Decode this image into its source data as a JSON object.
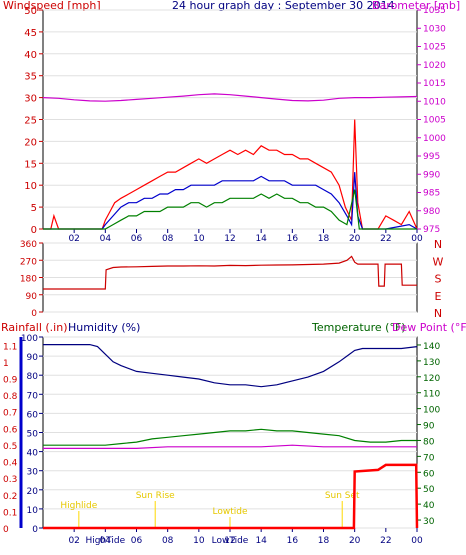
{
  "chart_data": [
    {
      "type": "line",
      "title": "24 hour graph day : September 30 2014",
      "ylabel_left": "Windspeed [mph]",
      "ylabel_right": "Barometer [mb]",
      "ylim_left": [
        0,
        50
      ],
      "yticks_left": [
        0,
        5,
        10,
        15,
        20,
        25,
        30,
        35,
        40,
        45,
        50
      ],
      "ylim_right": [
        975,
        1035
      ],
      "yticks_right": [
        975,
        980,
        985,
        990,
        995,
        1000,
        1005,
        1010,
        1015,
        1020,
        1025,
        1030,
        1035
      ],
      "xlim": [
        0,
        24
      ],
      "xtick_labels": [
        "02",
        "04",
        "06",
        "08",
        "10",
        "12",
        "14",
        "16",
        "18",
        "20",
        "22",
        "00"
      ],
      "colors": {
        "gust": "#ff0000",
        "wind_avg": "#0000cc",
        "wind_min": "#008000",
        "barometer": "#cc00cc",
        "axis_left": "#cc0000",
        "axis_right": "#cc00cc",
        "title": "#000080"
      },
      "series": [
        {
          "key": "gust",
          "color": "#ff0000",
          "x": [
            0.0,
            0.5,
            0.7,
            1.0,
            1.5,
            2.0,
            2.5,
            3.0,
            3.5,
            3.8,
            4.0,
            4.3,
            4.6,
            5.0,
            5.5,
            6.0,
            6.5,
            7.0,
            7.5,
            8.0,
            8.5,
            9.0,
            9.5,
            10.0,
            10.5,
            11.0,
            11.5,
            12.0,
            12.5,
            13.0,
            13.5,
            14.0,
            14.5,
            15.0,
            15.5,
            16.0,
            16.5,
            17.0,
            17.5,
            18.0,
            18.5,
            19.0,
            19.4,
            19.8,
            20.0,
            20.2,
            20.5,
            21.0,
            21.5,
            22.0,
            22.5,
            23.0,
            23.5,
            24.0
          ],
          "y": [
            0,
            0,
            3,
            0,
            0,
            0,
            0,
            0,
            0,
            0,
            2,
            4,
            6,
            7,
            8,
            9,
            10,
            11,
            12,
            13,
            13,
            14,
            15,
            16,
            15,
            16,
            17,
            18,
            17,
            18,
            17,
            19,
            18,
            18,
            17,
            17,
            16,
            16,
            15,
            14,
            13,
            10,
            5,
            2,
            25,
            6,
            0,
            0,
            0,
            3,
            2,
            1,
            4,
            0
          ]
        },
        {
          "key": "wind_avg",
          "color": "#0000cc",
          "x": [
            0.0,
            3.8,
            4.0,
            4.5,
            5.0,
            5.5,
            6.0,
            6.5,
            7.0,
            7.5,
            8.0,
            8.5,
            9.0,
            9.5,
            10.0,
            10.5,
            11.0,
            11.5,
            12.0,
            12.5,
            13.0,
            13.5,
            14.0,
            14.5,
            15.0,
            15.5,
            16.0,
            16.5,
            17.0,
            17.5,
            18.0,
            18.5,
            19.0,
            19.5,
            19.8,
            20.0,
            20.2,
            20.5,
            22.0,
            23.5,
            24.0
          ],
          "y": [
            0,
            0,
            1,
            3,
            5,
            6,
            6,
            7,
            7,
            8,
            8,
            9,
            9,
            10,
            10,
            10,
            10,
            11,
            11,
            11,
            11,
            11,
            12,
            11,
            11,
            11,
            10,
            10,
            10,
            10,
            9,
            8,
            6,
            3,
            1,
            13,
            3,
            0,
            0,
            1,
            0
          ]
        },
        {
          "key": "wind_min",
          "color": "#008000",
          "x": [
            0.0,
            4.0,
            4.5,
            5.0,
            5.5,
            6.0,
            6.5,
            7.0,
            7.5,
            8.0,
            8.5,
            9.0,
            9.5,
            10.0,
            10.5,
            11.0,
            11.5,
            12.0,
            12.5,
            13.0,
            13.5,
            14.0,
            14.5,
            15.0,
            15.5,
            16.0,
            16.5,
            17.0,
            17.5,
            18.0,
            18.5,
            19.0,
            19.5,
            20.0,
            20.3,
            24.0
          ],
          "y": [
            0,
            0,
            1,
            2,
            3,
            3,
            4,
            4,
            4,
            5,
            5,
            5,
            6,
            6,
            5,
            6,
            6,
            7,
            7,
            7,
            7,
            8,
            7,
            8,
            7,
            7,
            6,
            6,
            5,
            5,
            4,
            2,
            1,
            9,
            0,
            0
          ]
        },
        {
          "key": "barometer",
          "color": "#cc00cc",
          "x": [
            0,
            1,
            2,
            3,
            4,
            5,
            6,
            7,
            8,
            9,
            10,
            11,
            12,
            13,
            14,
            15,
            16,
            17,
            18,
            19,
            20,
            21,
            22,
            23,
            24
          ],
          "y": [
            1011.0,
            1010.8,
            1010.4,
            1010.1,
            1010.0,
            1010.2,
            1010.5,
            1010.8,
            1011.1,
            1011.4,
            1011.8,
            1012.0,
            1011.8,
            1011.4,
            1011.0,
            1010.6,
            1010.2,
            1010.1,
            1010.3,
            1010.8,
            1011.0,
            1011.0,
            1011.1,
            1011.2,
            1011.3
          ]
        }
      ]
    },
    {
      "type": "line",
      "yticks": [
        0,
        90,
        180,
        270,
        360
      ],
      "ylim": [
        0,
        360
      ],
      "compass_labels": [
        "N",
        "W",
        "S",
        "E",
        "N"
      ],
      "series": [
        {
          "key": "wind_direction",
          "color": "#cc0000",
          "x": [
            0.0,
            4.0,
            4.05,
            4.5,
            5.0,
            6.0,
            7.0,
            8.0,
            9.0,
            10.0,
            11.0,
            12.0,
            13.0,
            14.0,
            15.0,
            16.0,
            17.0,
            18.0,
            19.0,
            19.5,
            19.8,
            20.0,
            20.2,
            21.5,
            21.55,
            21.9,
            21.95,
            22.1,
            22.15,
            23.0,
            23.05,
            24.0
          ],
          "y": [
            120,
            120,
            220,
            232,
            235,
            236,
            238,
            240,
            240,
            241,
            240,
            243,
            242,
            244,
            245,
            246,
            248,
            250,
            255,
            270,
            290,
            260,
            250,
            250,
            135,
            135,
            250,
            250,
            250,
            250,
            140,
            140
          ]
        }
      ]
    },
    {
      "type": "line",
      "ylabel_1": "Rainfall (.in)",
      "ylabel_2": "Humidity (%)",
      "ylabel_3": "Temperature (°F)",
      "ylabel_4": "Dew Point (°F)",
      "rain_ticks": [
        "0",
        "0.1",
        "0.2",
        "0.3",
        "0.4",
        "0.5",
        "0.6",
        "0.7",
        "0.8",
        "0.9",
        "1",
        "1.1"
      ],
      "rain_lim": [
        0,
        1.15
      ],
      "humidity_ticks": [
        0,
        10,
        20,
        30,
        40,
        50,
        60,
        70,
        80,
        90,
        100
      ],
      "humidity_lim": [
        0,
        100
      ],
      "temp_ticks": [
        30,
        40,
        50,
        60,
        70,
        80,
        90,
        100,
        110,
        120,
        130,
        140
      ],
      "temp_lim": [
        25,
        145
      ],
      "annotations": [
        {
          "text": "Highlide",
          "x": 2.3
        },
        {
          "text": "Sun Rise",
          "x": 7.2
        },
        {
          "text": "Lowtide",
          "x": 12.0
        },
        {
          "text": "Sun Set",
          "x": 19.2
        }
      ],
      "bottom_labels": [
        {
          "text": "HighTide",
          "x": 4.0
        },
        {
          "text": "LowTide",
          "x": 12.0
        }
      ],
      "series": [
        {
          "key": "humidity",
          "color": "#000080",
          "x": [
            0,
            1,
            2,
            3,
            3.5,
            4,
            4.5,
            5,
            6,
            7,
            8,
            9,
            10,
            11,
            12,
            13,
            14,
            15,
            16,
            17,
            18,
            19,
            19.5,
            20,
            20.5,
            21,
            22,
            23,
            24
          ],
          "y": [
            96,
            96,
            96,
            96,
            95,
            91,
            87,
            85,
            82,
            81,
            80,
            79,
            78,
            76,
            75,
            75,
            74,
            75,
            77,
            79,
            82,
            87,
            90,
            93,
            94,
            94,
            94,
            94,
            95
          ]
        },
        {
          "key": "temperature",
          "color": "#008000",
          "x": [
            0,
            2,
            4,
            5,
            6,
            7,
            8,
            9,
            10,
            11,
            12,
            13,
            14,
            15,
            16,
            17,
            18,
            19,
            20,
            21,
            22,
            23,
            24
          ],
          "y": [
            77,
            77,
            77,
            78,
            79,
            81,
            82,
            83,
            84,
            85,
            86,
            86,
            87,
            86,
            86,
            85,
            84,
            83,
            80,
            79,
            79,
            80,
            80
          ]
        },
        {
          "key": "dewpoint",
          "color": "#cc00cc",
          "x": [
            0,
            2,
            4,
            6,
            8,
            10,
            12,
            14,
            16,
            18,
            20,
            22,
            24
          ],
          "y": [
            75,
            75,
            75,
            75,
            76,
            76,
            76,
            76,
            77,
            76,
            76,
            76,
            76
          ]
        },
        {
          "key": "rainfall",
          "color": "#ff0000",
          "x": [
            0,
            19.95,
            20.0,
            21.5,
            22.0,
            23.9,
            23.95,
            24.0
          ],
          "y": [
            0,
            0,
            0.34,
            0.35,
            0.38,
            0.38,
            0.38,
            0
          ]
        }
      ]
    }
  ]
}
